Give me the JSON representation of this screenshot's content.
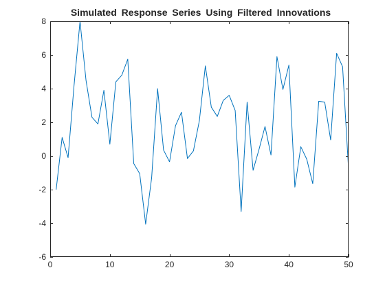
{
  "chart_data": {
    "type": "line",
    "title": "Simulated Response Series Using Filtered Innovations",
    "xlabel": "",
    "ylabel": "",
    "xlim": [
      0,
      50
    ],
    "ylim": [
      -6,
      8
    ],
    "x_ticks": [
      0,
      10,
      20,
      30,
      40,
      50
    ],
    "y_ticks": [
      -6,
      -4,
      -2,
      0,
      2,
      4,
      6,
      8
    ],
    "x_tick_labels": [
      "0",
      "10",
      "20",
      "30",
      "40",
      "50"
    ],
    "y_tick_labels": [
      "-6",
      "-4",
      "-2",
      "0",
      "2",
      "4",
      "6",
      "8"
    ],
    "grid": false,
    "box": true,
    "line_color": "#0072BD",
    "axis_color": "#262626",
    "series": [
      {
        "x": [
          1,
          2,
          3,
          4,
          5,
          6,
          7,
          8,
          9,
          10,
          11,
          12,
          13,
          14,
          15,
          16,
          17,
          18,
          19,
          20,
          21,
          22,
          23,
          24,
          25,
          26,
          27,
          28,
          29,
          30,
          31,
          32,
          33,
          34,
          35,
          36,
          37,
          38,
          39,
          40,
          41,
          42,
          43,
          44,
          45,
          46,
          47,
          48,
          49,
          50
        ],
        "values": [
          -2.0,
          1.1,
          -0.1,
          4.2,
          8.0,
          4.5,
          2.3,
          1.9,
          3.9,
          0.7,
          4.4,
          4.8,
          5.75,
          -0.45,
          -1.05,
          -4.05,
          -1.3,
          4.0,
          0.35,
          -0.35,
          1.8,
          2.6,
          -0.15,
          0.3,
          2.1,
          5.35,
          2.9,
          2.35,
          3.3,
          3.6,
          2.7,
          -3.3,
          3.2,
          -0.85,
          0.4,
          1.75,
          0.05,
          5.9,
          3.95,
          5.4,
          -1.85,
          0.55,
          -0.2,
          -1.65,
          3.25,
          3.2,
          0.95,
          6.1,
          5.3,
          -0.8
        ]
      }
    ]
  }
}
